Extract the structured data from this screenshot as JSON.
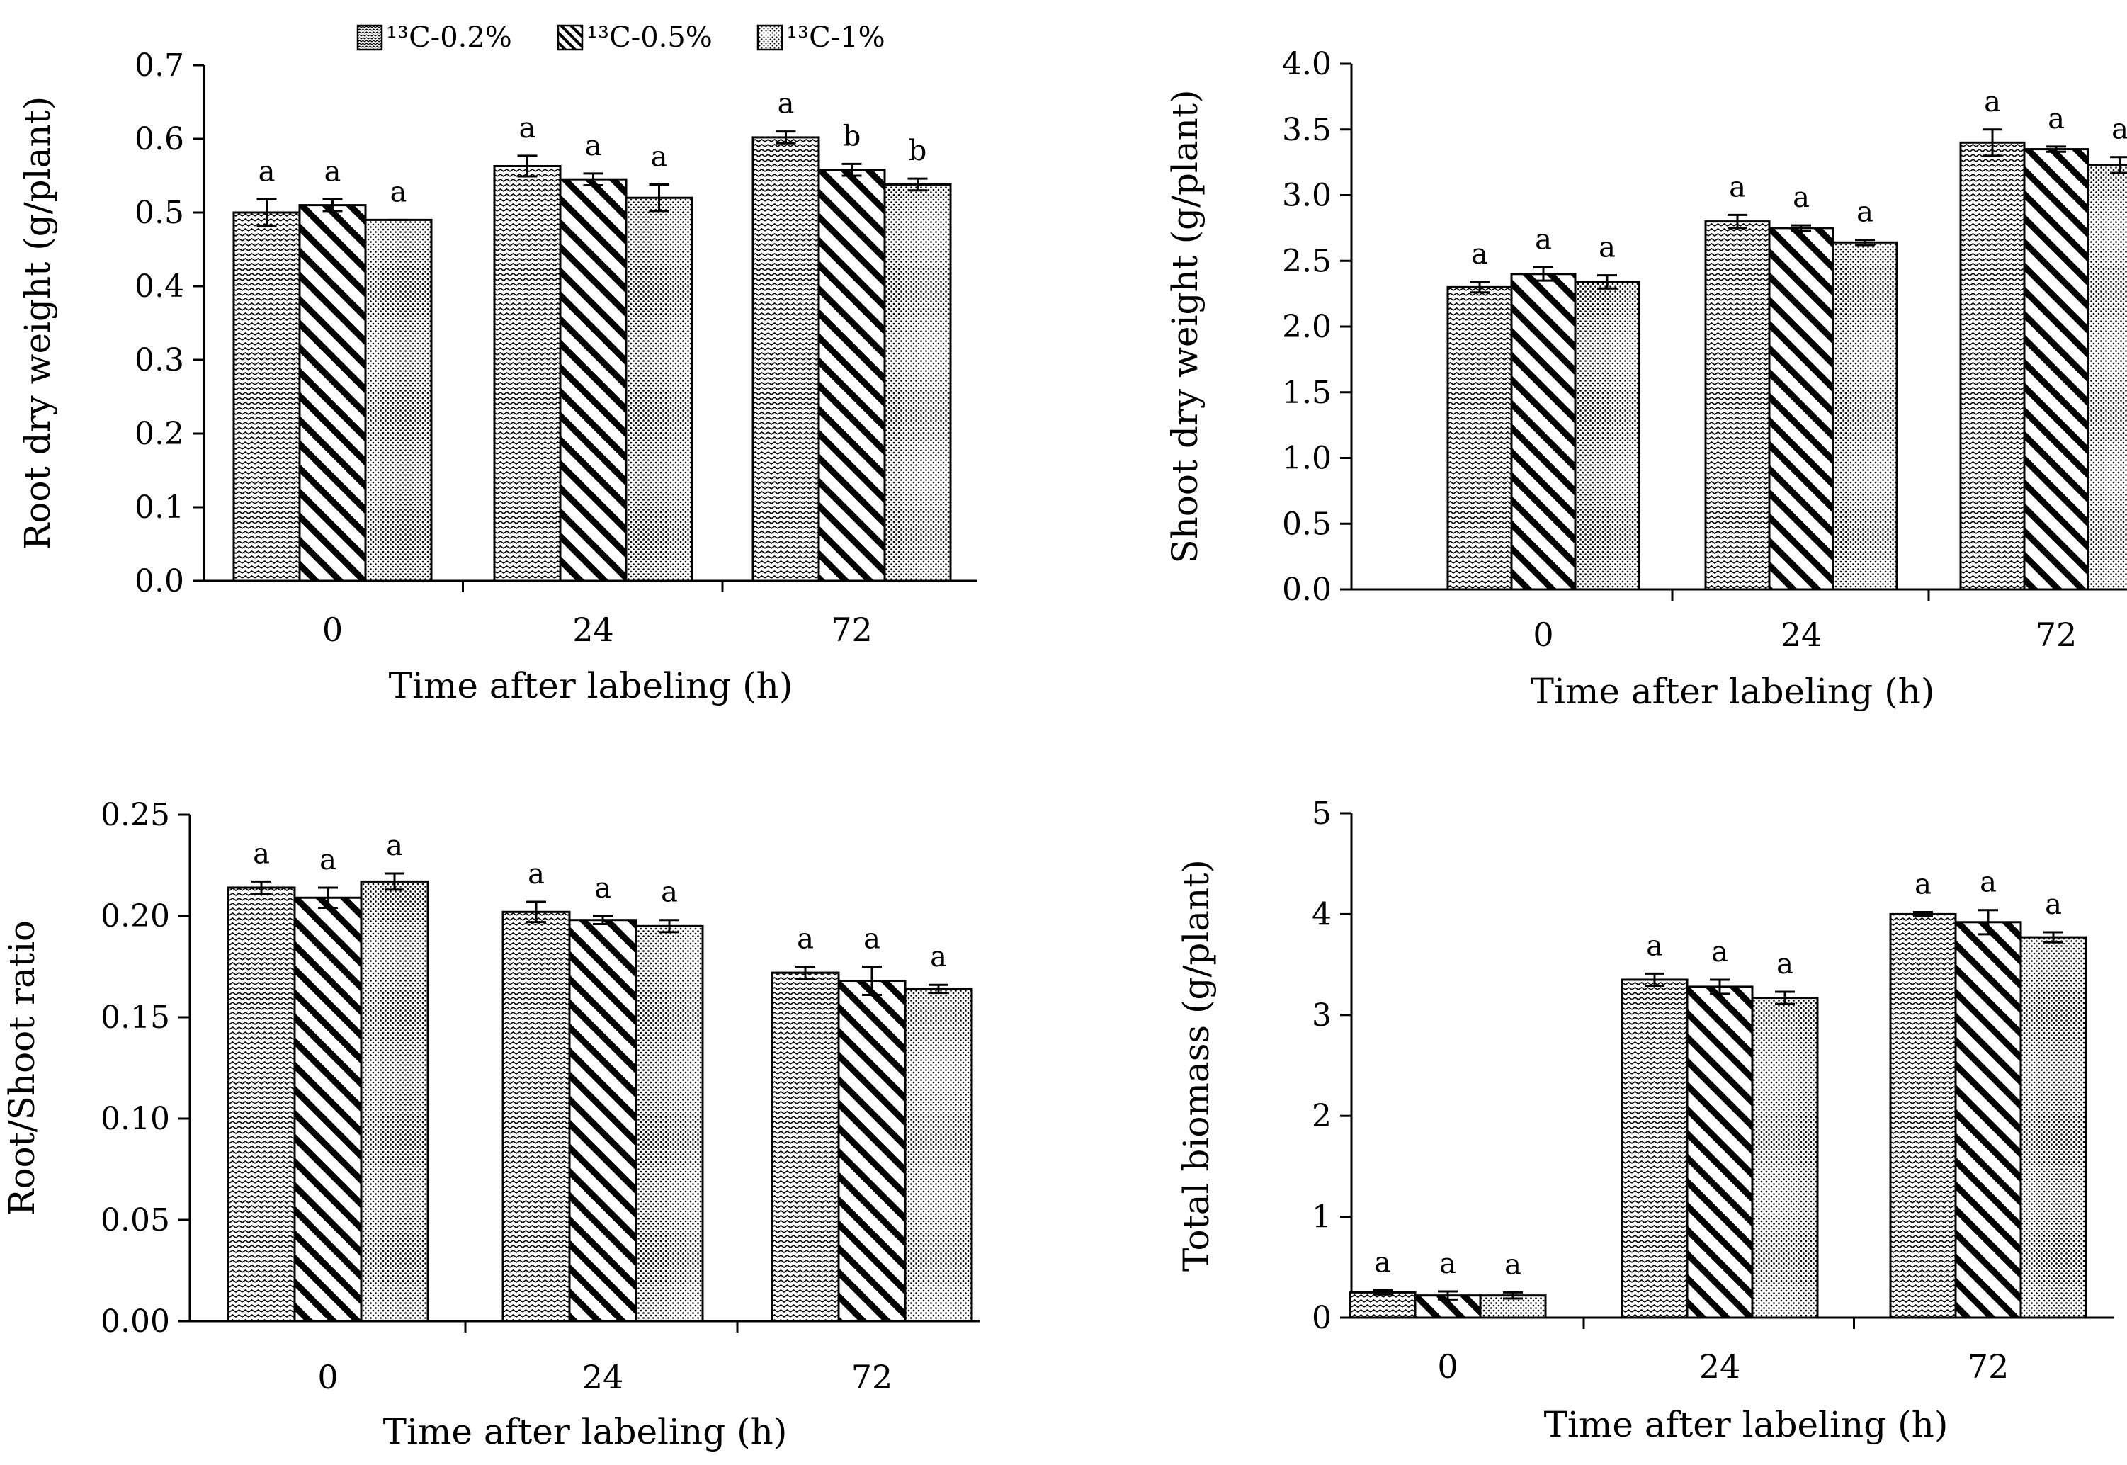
{
  "legend": [
    {
      "name": "¹³C-0.2%",
      "pattern": "wave"
    },
    {
      "name": "¹³C-0.5%",
      "pattern": "diag"
    },
    {
      "name": "¹³C-1%",
      "pattern": "dots"
    }
  ],
  "chart_data": [
    {
      "type": "bar",
      "title": "",
      "xlabel": "Time after labeling (h)",
      "ylabel": "Root dry weight (g/plant)",
      "categories": [
        "0",
        "24",
        "72"
      ],
      "ylim": [
        0,
        0.7
      ],
      "yticks": [
        "0.0",
        "0.1",
        "0.2",
        "0.3",
        "0.4",
        "0.5",
        "0.6",
        "0.7"
      ],
      "series": [
        {
          "name": "¹³C-0.2%",
          "values": [
            0.5,
            0.563,
            0.602
          ],
          "errors": [
            0.018,
            0.014,
            0.008
          ],
          "letters": [
            "a",
            "a",
            "a"
          ]
        },
        {
          "name": "¹³C-0.5%",
          "values": [
            0.51,
            0.545,
            0.558
          ],
          "errors": [
            0.008,
            0.008,
            0.008
          ],
          "letters": [
            "a",
            "a",
            "b"
          ]
        },
        {
          "name": "¹³C-1%",
          "values": [
            0.49,
            0.52,
            0.538
          ],
          "errors": [
            0.0,
            0.018,
            0.008
          ],
          "letters": [
            "a",
            "a",
            "b"
          ]
        }
      ]
    },
    {
      "type": "bar",
      "title": "",
      "xlabel": "Time after labeling (h)",
      "ylabel": "Shoot dry weight (g/plant)",
      "categories": [
        "0",
        "24",
        "72"
      ],
      "ylim": [
        0,
        4.0
      ],
      "yticks": [
        "0.0",
        "0.5",
        "1.0",
        "1.5",
        "2.0",
        "2.5",
        "3.0",
        "3.5",
        "4.0"
      ],
      "series": [
        {
          "name": "¹³C-0.2%",
          "values": [
            2.3,
            2.8,
            3.4
          ],
          "errors": [
            0.04,
            0.05,
            0.1
          ],
          "letters": [
            "a",
            "a",
            "a"
          ]
        },
        {
          "name": "¹³C-0.5%",
          "values": [
            2.4,
            2.75,
            3.35
          ],
          "errors": [
            0.05,
            0.02,
            0.02
          ],
          "letters": [
            "a",
            "a",
            "a"
          ]
        },
        {
          "name": "¹³C-1%",
          "values": [
            2.34,
            2.64,
            3.23
          ],
          "errors": [
            0.05,
            0.02,
            0.06
          ],
          "letters": [
            "a",
            "a",
            "a"
          ]
        }
      ]
    },
    {
      "type": "bar",
      "title": "",
      "xlabel": "Time after labeling (h)",
      "ylabel": "Root/Shoot ratio",
      "categories": [
        "0",
        "24",
        "72"
      ],
      "ylim": [
        0,
        0.25
      ],
      "yticks": [
        "0.00",
        "0.05",
        "0.10",
        "0.15",
        "0.20",
        "0.25"
      ],
      "series": [
        {
          "name": "¹³C-0.2%",
          "values": [
            0.214,
            0.202,
            0.172
          ],
          "errors": [
            0.003,
            0.005,
            0.003
          ],
          "letters": [
            "a",
            "a",
            "a"
          ]
        },
        {
          "name": "¹³C-0.5%",
          "values": [
            0.209,
            0.198,
            0.168
          ],
          "errors": [
            0.005,
            0.002,
            0.007
          ],
          "letters": [
            "a",
            "a",
            "a"
          ]
        },
        {
          "name": "¹³C-1%",
          "values": [
            0.217,
            0.195,
            0.164
          ],
          "errors": [
            0.004,
            0.003,
            0.002
          ],
          "letters": [
            "a",
            "a",
            "a"
          ]
        }
      ]
    },
    {
      "type": "bar",
      "title": "",
      "xlabel": "Time after labeling (h)",
      "ylabel": "Total biomass (g/plant)",
      "categories": [
        "0",
        "24",
        "72"
      ],
      "ylim": [
        0,
        5
      ],
      "yticks": [
        "0",
        "1",
        "2",
        "3",
        "4",
        "5"
      ],
      "series": [
        {
          "name": "¹³C-0.2%",
          "values": [
            0.25,
            3.35,
            4.0
          ],
          "errors": [
            0.02,
            0.06,
            0.02
          ],
          "letters": [
            "a",
            "a",
            "a"
          ]
        },
        {
          "name": "¹³C-0.5%",
          "values": [
            0.22,
            3.28,
            3.92
          ],
          "errors": [
            0.04,
            0.07,
            0.12
          ],
          "letters": [
            "a",
            "a",
            "a"
          ]
        },
        {
          "name": "¹³C-1%",
          "values": [
            0.22,
            3.17,
            3.77
          ],
          "errors": [
            0.03,
            0.06,
            0.05
          ],
          "letters": [
            "a",
            "a",
            "a"
          ]
        }
      ]
    }
  ]
}
